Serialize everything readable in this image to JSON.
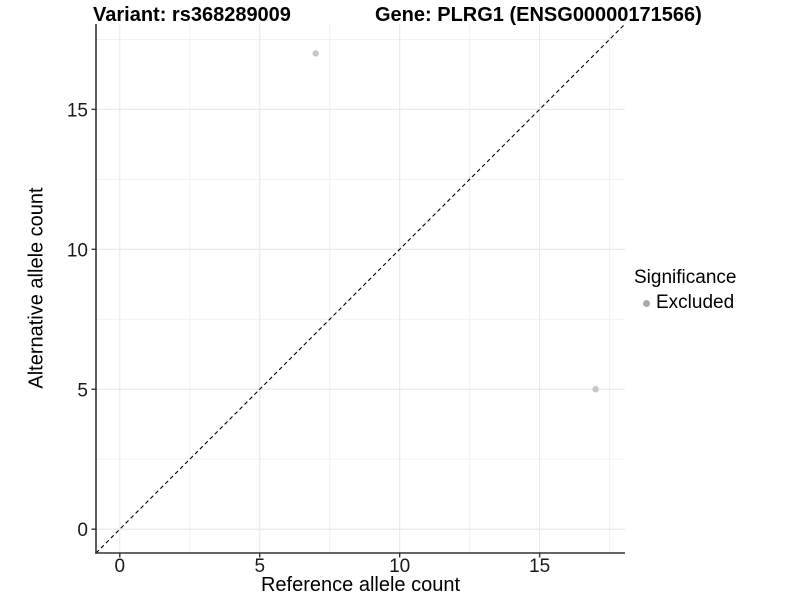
{
  "chart_data": {
    "type": "scatter",
    "title_variant": "Variant: rs368289009",
    "title_gene": "Gene: PLRG1 (ENSG00000171566)",
    "xlabel": "Reference allele count",
    "ylabel": "Alternative allele count",
    "xlim": [
      -0.85,
      18.05
    ],
    "ylim": [
      -0.85,
      18.05
    ],
    "x_ticks": [
      0,
      5,
      10,
      15
    ],
    "y_ticks": [
      0,
      5,
      10,
      15
    ],
    "x_minor_ticks": [
      2.5,
      7.5,
      12.5,
      17.5
    ],
    "y_minor_ticks": [
      2.5,
      7.5,
      12.5,
      17.5
    ],
    "grid": true,
    "series": [
      {
        "name": "Excluded",
        "points": [
          {
            "x": 7,
            "y": 17
          },
          {
            "x": 17,
            "y": 5
          }
        ]
      }
    ],
    "reference_line": {
      "type": "identity",
      "slope": 1,
      "intercept": 0,
      "style": "dashed"
    },
    "legend": {
      "title": "Significance",
      "position": "right",
      "entries": [
        {
          "label": "Excluded",
          "color": "#a9a9a9"
        }
      ]
    }
  },
  "colors": {
    "background": "#ffffff",
    "grid_major": "#e7e7e7",
    "grid_minor": "#f0f0f0",
    "axis_line": "#333333",
    "tick_mark": "#333333",
    "tick_label": "#1a1a1a",
    "point": "#c6c6c6",
    "legend_key": "#a9a9a9",
    "reference_line": "#000000"
  }
}
